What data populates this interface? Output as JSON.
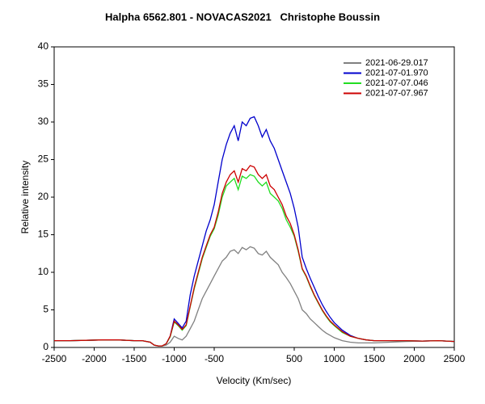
{
  "chart_data": {
    "type": "line",
    "title": "Halpha 6562.801 - NOVACAS2021   Christophe Boussin",
    "x_label": "Velocity (Km/sec)",
    "y_label": "Relative intensity",
    "x": [
      -2500,
      -2300,
      -2100,
      -1900,
      -1700,
      -1500,
      -1400,
      -1300,
      -1250,
      -1200,
      -1150,
      -1100,
      -1050,
      -1000,
      -950,
      -900,
      -850,
      -800,
      -750,
      -700,
      -650,
      -600,
      -550,
      -500,
      -450,
      -400,
      -350,
      -300,
      -250,
      -200,
      -150,
      -100,
      -50,
      0,
      50,
      100,
      150,
      200,
      250,
      300,
      350,
      400,
      450,
      500,
      550,
      600,
      650,
      700,
      750,
      800,
      850,
      900,
      950,
      1000,
      1100,
      1200,
      1300,
      1400,
      1500,
      1700,
      1900,
      2100,
      2300,
      2500
    ],
    "series": [
      {
        "name": "2021-06-29.017",
        "color": "#808080",
        "values": [
          0.9,
          0.9,
          0.95,
          1.0,
          1.0,
          0.9,
          0.9,
          0.7,
          0.3,
          0.2,
          0.2,
          0.3,
          0.7,
          1.5,
          1.2,
          1.0,
          1.5,
          2.5,
          3.5,
          5,
          6.5,
          7.5,
          8.5,
          9.5,
          10.5,
          11.5,
          12,
          12.8,
          13,
          12.5,
          13.3,
          13,
          13.4,
          13.2,
          12.5,
          12.3,
          12.8,
          12,
          11.5,
          11,
          10,
          9.3,
          8.5,
          7.5,
          6.5,
          5,
          4.5,
          3.8,
          3.3,
          2.8,
          2.3,
          1.9,
          1.6,
          1.3,
          0.9,
          0.7,
          0.6,
          0.6,
          0.6,
          0.7,
          0.8,
          0.85,
          0.9,
          0.8
        ]
      },
      {
        "name": "2021-07-01.970",
        "color": "#0000cc",
        "values": [
          0.9,
          0.9,
          0.95,
          1.0,
          1.0,
          0.9,
          0.9,
          0.7,
          0.3,
          0.2,
          0.2,
          0.5,
          1.5,
          3.8,
          3.2,
          2.6,
          3.5,
          7,
          9.5,
          11.5,
          13.5,
          15.5,
          17,
          19,
          22,
          25,
          27,
          28.5,
          29.5,
          27.5,
          30,
          29.5,
          30.5,
          30.7,
          29.5,
          28,
          29,
          27.5,
          26.5,
          25,
          23.5,
          22,
          20.5,
          18.5,
          16,
          12,
          10.5,
          9.2,
          8,
          6.8,
          5.7,
          4.8,
          4,
          3.3,
          2.3,
          1.6,
          1.2,
          1.0,
          0.9,
          0.9,
          0.9,
          0.85,
          0.9,
          0.8
        ]
      },
      {
        "name": "2021-07-07.046",
        "color": "#22dd22",
        "values": [
          0.9,
          0.9,
          0.95,
          1.0,
          1.0,
          0.9,
          0.9,
          0.7,
          0.3,
          0.2,
          0.2,
          0.5,
          1.4,
          3.4,
          2.9,
          2.3,
          2.9,
          5.4,
          7.8,
          9.8,
          11.8,
          13.3,
          14.8,
          15.8,
          17.6,
          20,
          21.5,
          22,
          22.5,
          21,
          22.8,
          22.5,
          23,
          22.8,
          22,
          21.5,
          22,
          20.5,
          20,
          19.5,
          18.5,
          17,
          16,
          14.8,
          12.8,
          10.4,
          9.4,
          8.1,
          6.9,
          5.9,
          4.9,
          4.1,
          3.4,
          2.9,
          2.0,
          1.5,
          1.2,
          1.0,
          0.9,
          0.9,
          0.9,
          0.85,
          0.9,
          0.8
        ]
      },
      {
        "name": "2021-07-07.967",
        "color": "#cc0000",
        "values": [
          0.9,
          0.9,
          0.95,
          1.0,
          1.0,
          0.9,
          0.9,
          0.7,
          0.3,
          0.2,
          0.2,
          0.5,
          1.5,
          3.5,
          3.0,
          2.4,
          3.0,
          5.5,
          8,
          10,
          12,
          13.5,
          15,
          16,
          18,
          20.5,
          22,
          23,
          23.5,
          22,
          23.8,
          23.5,
          24.2,
          24,
          23,
          22.5,
          23,
          21.5,
          21,
          20,
          19,
          17.5,
          16.5,
          15,
          13,
          10.5,
          9.5,
          8.2,
          7,
          6,
          5,
          4.2,
          3.5,
          3.0,
          2.1,
          1.5,
          1.2,
          1.0,
          0.9,
          0.9,
          0.9,
          0.85,
          0.9,
          0.8
        ]
      }
    ],
    "xlim": [
      -2500,
      2500
    ],
    "ylim": [
      0,
      40
    ],
    "xticks": [
      -2500,
      -2000,
      -1500,
      -1000,
      -500,
      500,
      1000,
      1500,
      2000,
      2500
    ],
    "yticks": [
      0,
      5,
      10,
      15,
      20,
      25,
      30,
      35,
      40
    ],
    "grid": false,
    "legend": "upper right"
  }
}
